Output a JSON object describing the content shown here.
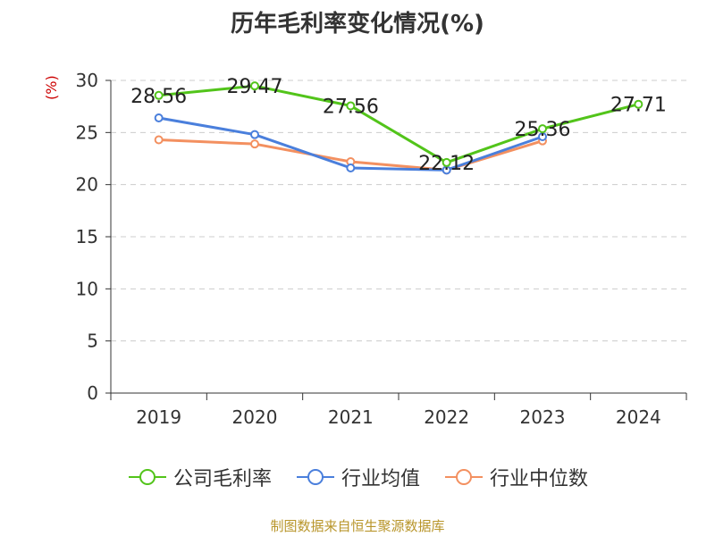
{
  "title": "历年毛利率变化情况(%)",
  "unit_label": "(%)",
  "footer": "制图数据来自恒生聚源数据库",
  "chart_data": {
    "type": "line",
    "title": "历年毛利率变化情况(%)",
    "ylabel": "(%)",
    "categories": [
      "2019",
      "2020",
      "2021",
      "2022",
      "2023",
      "2024"
    ],
    "ylim": [
      0,
      30
    ],
    "yticks": [
      0,
      5,
      10,
      15,
      20,
      25,
      30
    ],
    "grid": true,
    "legend_position": "bottom",
    "series": [
      {
        "name": "公司毛利率",
        "color": "#52c41a",
        "values": [
          28.56,
          29.47,
          27.56,
          22.12,
          25.36,
          27.71
        ],
        "labels": [
          "28.56",
          "29.47",
          "27.56",
          "22.12",
          "25.36",
          "27.71"
        ]
      },
      {
        "name": "行业均值",
        "color": "#4a7fdc",
        "values": [
          26.4,
          24.8,
          21.6,
          21.4,
          24.6,
          null
        ]
      },
      {
        "name": "行业中位数",
        "color": "#f39060",
        "values": [
          24.3,
          23.9,
          22.2,
          21.4,
          24.2,
          null
        ]
      }
    ]
  }
}
